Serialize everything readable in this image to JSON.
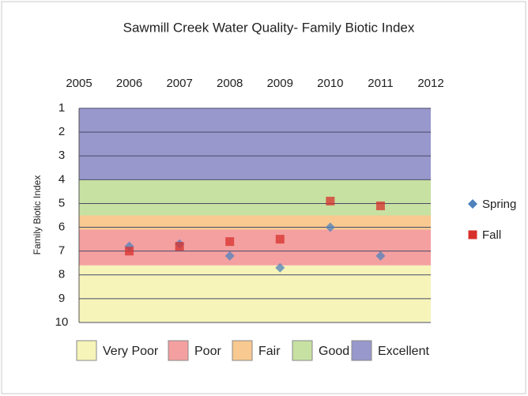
{
  "chart_data": {
    "type": "scatter",
    "title": "Sawmill Creek Water Quality- Family Biotic Index",
    "y_label": "Family Biotic Index",
    "xlim": [
      2005,
      2012
    ],
    "xticks": [
      2005,
      2006,
      2007,
      2008,
      2009,
      2010,
      2011,
      2012
    ],
    "ylim": [
      1,
      10
    ],
    "y_reversed": true,
    "yticks": [
      1,
      2,
      3,
      4,
      5,
      6,
      7,
      8,
      9,
      10
    ],
    "grid": true,
    "legend": "right",
    "bands": [
      {
        "name": "Very Poor",
        "from": 7.6,
        "to": 10,
        "color": "#f6f4b8"
      },
      {
        "name": "Poor",
        "from": 6.1,
        "to": 7.6,
        "color": "#f4a0a0"
      },
      {
        "name": "Fair",
        "from": 5.5,
        "to": 6.1,
        "color": "#f8c990"
      },
      {
        "name": "Good",
        "from": 4,
        "to": 5.5,
        "color": "#c7e1a2"
      },
      {
        "name": "Excellent",
        "from": 1,
        "to": 4,
        "color": "#9898cc"
      }
    ],
    "series": [
      {
        "name": "Spring",
        "color": "#4f81bd",
        "marker": "diamond",
        "x": [
          2006,
          2007,
          2008,
          2009,
          2010,
          2011
        ],
        "values": [
          6.8,
          6.7,
          7.2,
          7.7,
          6.0,
          7.2
        ]
      },
      {
        "name": "Fall",
        "color": "#d8302c",
        "marker": "square",
        "x": [
          2006,
          2007,
          2008,
          2009,
          2010,
          2011
        ],
        "values": [
          7.0,
          6.8,
          6.6,
          6.5,
          4.9,
          5.1
        ]
      }
    ]
  }
}
